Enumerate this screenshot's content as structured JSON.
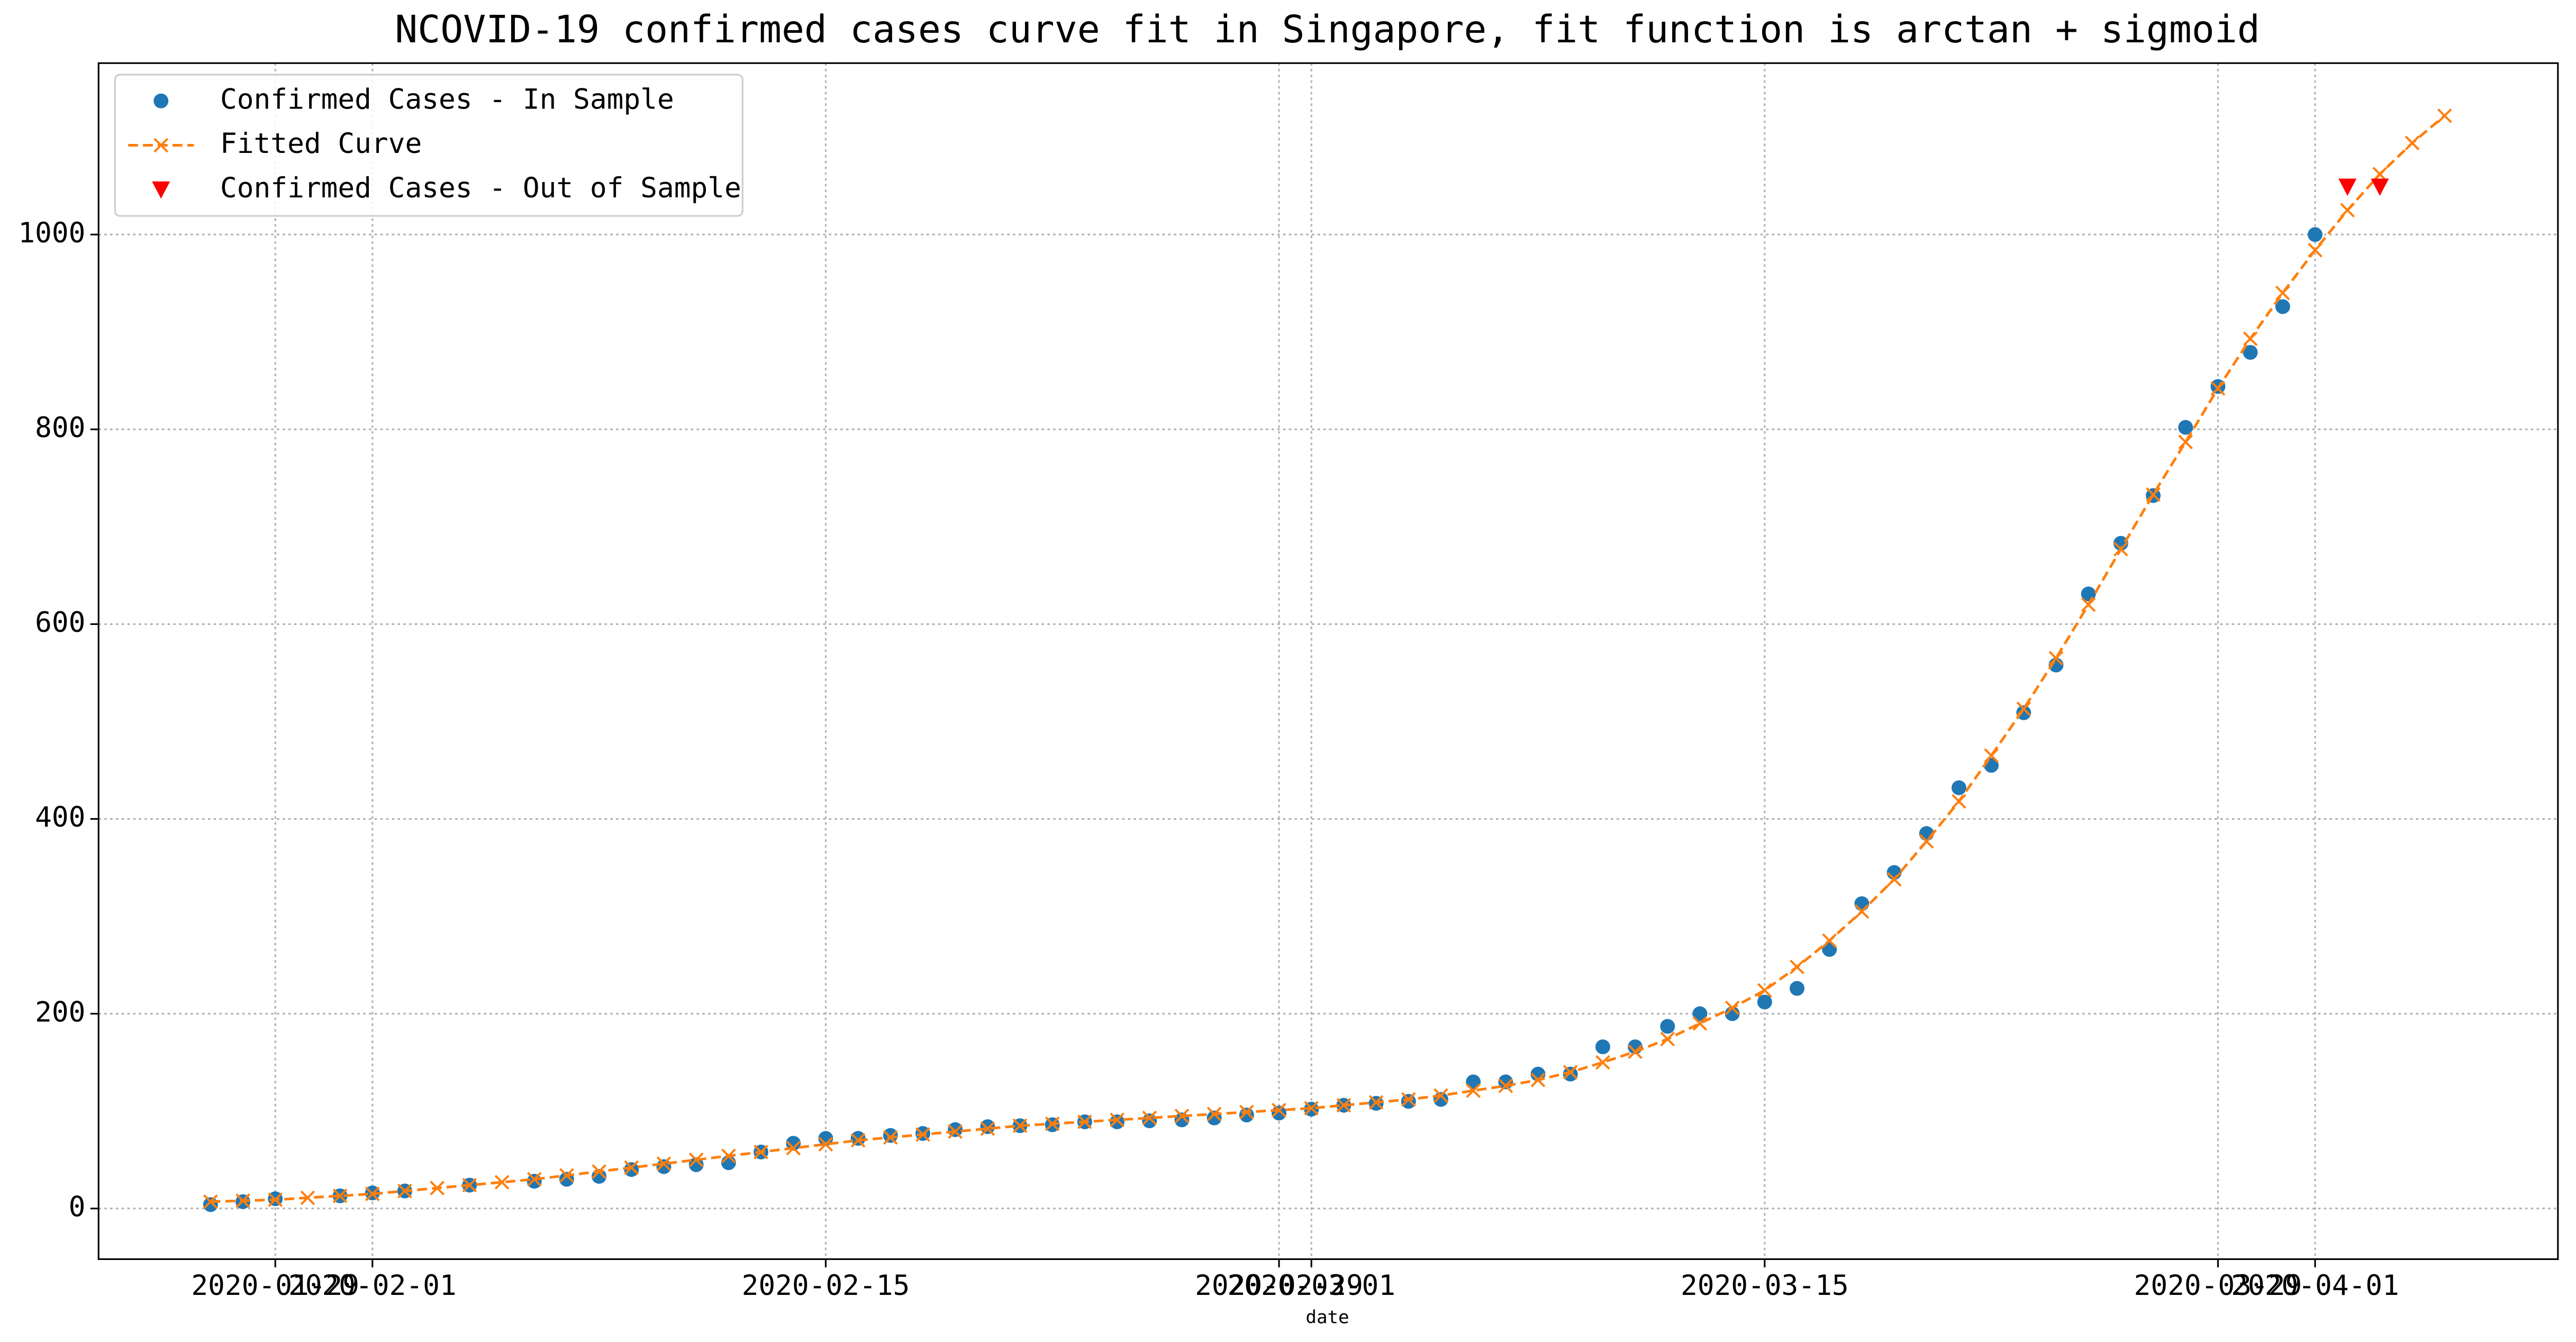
{
  "chart_data": {
    "type": "line",
    "title": "NCOVID-19 confirmed cases curve fit in Singapore, fit function is arctan + sigmoid",
    "x_label": "date",
    "xlim": [
      "2020-01-23T13:00",
      "2020-04-08T12:00"
    ],
    "xticks": [
      "2020-01-29",
      "2020-02-01",
      "2020-02-15",
      "2020-02-29",
      "2020-03-01",
      "2020-03-15",
      "2020-03-29",
      "2020-04-01"
    ],
    "ylim": [
      -52,
      1176
    ],
    "yticks": [
      0,
      200,
      400,
      600,
      800,
      1000
    ],
    "grid": true,
    "legend": "upper left",
    "series": [
      {
        "name": "Confirmed Cases - In Sample",
        "color": "#1f77b4",
        "marker": "o",
        "linestyle": "none",
        "x": [
          "2020-01-27",
          "2020-01-28",
          "2020-01-29",
          "2020-01-31",
          "2020-02-01",
          "2020-02-02",
          "2020-02-04",
          "2020-02-06",
          "2020-02-07",
          "2020-02-08",
          "2020-02-09",
          "2020-02-10",
          "2020-02-11",
          "2020-02-12",
          "2020-02-13",
          "2020-02-14",
          "2020-02-15",
          "2020-02-16",
          "2020-02-17",
          "2020-02-18",
          "2020-02-19",
          "2020-02-20",
          "2020-02-21",
          "2020-02-22",
          "2020-02-23",
          "2020-02-24",
          "2020-02-25",
          "2020-02-26",
          "2020-02-27",
          "2020-02-28",
          "2020-02-29",
          "2020-03-01",
          "2020-03-02",
          "2020-03-03",
          "2020-03-04",
          "2020-03-05",
          "2020-03-06",
          "2020-03-07",
          "2020-03-08",
          "2020-03-09",
          "2020-03-10",
          "2020-03-11",
          "2020-03-12",
          "2020-03-13",
          "2020-03-14",
          "2020-03-15",
          "2020-03-16",
          "2020-03-17",
          "2020-03-18",
          "2020-03-19",
          "2020-03-20",
          "2020-03-21",
          "2020-03-22",
          "2020-03-23",
          "2020-03-24",
          "2020-03-25",
          "2020-03-26",
          "2020-03-27",
          "2020-03-28",
          "2020-03-29",
          "2020-03-30",
          "2020-03-31",
          "2020-04-01"
        ],
        "values": [
          4,
          7,
          10,
          13,
          16,
          18,
          24,
          28,
          30,
          33,
          40,
          43,
          45,
          47,
          58,
          67,
          72,
          72,
          75,
          77,
          81,
          84,
          85,
          86,
          89,
          89,
          90,
          91,
          93,
          96,
          98,
          102,
          106,
          108,
          110,
          112,
          130,
          130,
          138,
          138,
          166,
          166,
          187,
          200,
          200,
          212,
          226,
          266,
          313,
          345,
          385,
          432,
          455,
          509,
          558,
          631,
          683,
          732,
          802,
          844,
          879,
          926,
          1000
        ]
      },
      {
        "name": "Fitted Curve",
        "color": "#ff7f0e",
        "marker": "x",
        "linestyle": "dashed",
        "x": [
          "2020-01-27",
          "2020-01-28",
          "2020-01-29",
          "2020-01-30",
          "2020-01-31",
          "2020-02-01",
          "2020-02-02",
          "2020-02-03",
          "2020-02-04",
          "2020-02-05",
          "2020-02-06",
          "2020-02-07",
          "2020-02-08",
          "2020-02-09",
          "2020-02-10",
          "2020-02-11",
          "2020-02-12",
          "2020-02-13",
          "2020-02-14",
          "2020-02-15",
          "2020-02-16",
          "2020-02-17",
          "2020-02-18",
          "2020-02-19",
          "2020-02-20",
          "2020-02-21",
          "2020-02-22",
          "2020-02-23",
          "2020-02-24",
          "2020-02-25",
          "2020-02-26",
          "2020-02-27",
          "2020-02-28",
          "2020-02-29",
          "2020-03-01",
          "2020-03-02",
          "2020-03-03",
          "2020-03-04",
          "2020-03-05",
          "2020-03-06",
          "2020-03-07",
          "2020-03-08",
          "2020-03-09",
          "2020-03-10",
          "2020-03-11",
          "2020-03-12",
          "2020-03-13",
          "2020-03-14",
          "2020-03-15",
          "2020-03-16",
          "2020-03-17",
          "2020-03-18",
          "2020-03-19",
          "2020-03-20",
          "2020-03-21",
          "2020-03-22",
          "2020-03-23",
          "2020-03-24",
          "2020-03-25",
          "2020-03-26",
          "2020-03-27",
          "2020-03-28",
          "2020-03-29",
          "2020-03-30",
          "2020-03-31",
          "2020-04-01",
          "2020-04-02",
          "2020-04-03",
          "2020-04-04",
          "2020-04-05"
        ],
        "values": [
          7,
          8,
          9,
          11,
          13,
          15,
          18,
          21,
          24,
          27,
          30,
          34,
          38,
          42,
          46,
          50,
          54,
          58,
          62,
          66,
          70,
          73,
          76,
          79,
          82,
          85,
          87,
          89,
          91,
          93,
          95,
          97,
          99,
          101,
          103,
          106,
          109,
          112,
          116,
          121,
          126,
          132,
          140,
          150,
          161,
          174,
          190,
          206,
          224,
          248,
          275,
          305,
          338,
          377,
          418,
          465,
          513,
          565,
          620,
          677,
          733,
          787,
          842,
          893,
          940,
          984,
          1025,
          1062,
          1094,
          1122
        ]
      },
      {
        "name": "Confirmed Cases - Out of Sample",
        "color": "#ff0000",
        "marker": "v",
        "linestyle": "none",
        "x": [
          "2020-04-02",
          "2020-04-03"
        ],
        "values": [
          1049,
          1049
        ]
      }
    ]
  }
}
